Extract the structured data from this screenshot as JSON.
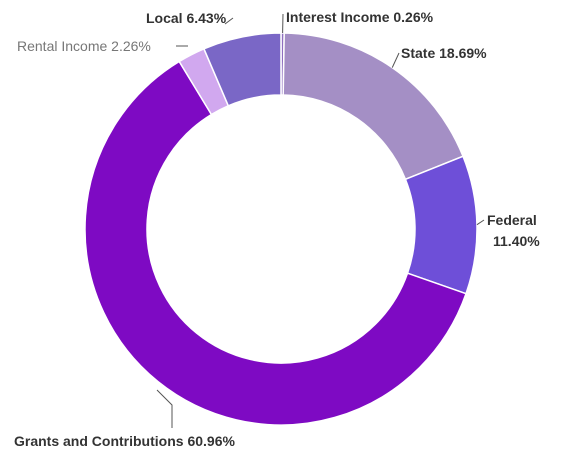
{
  "chart_data": {
    "type": "pie",
    "donut": true,
    "legend": "none",
    "slices": [
      {
        "label": "Interest Income",
        "value": 0.26,
        "display": "Interest Income 0.26%",
        "color": "#8f6fbf"
      },
      {
        "label": "State",
        "value": 18.69,
        "display": "State 18.69%",
        "color": "#a48fc5"
      },
      {
        "label": "Federal",
        "value": 11.4,
        "display_lines": [
          "Federal",
          "11.40%"
        ],
        "color": "#6e4fd8"
      },
      {
        "label": "Grants and Contributions",
        "value": 60.96,
        "display": "Grants and Contributions 60.96%",
        "color": "#7e0ac3"
      },
      {
        "label": "Rental Income",
        "value": 2.26,
        "display": "Rental Income 2.26%",
        "color": "#d1a8ef"
      },
      {
        "label": "Local",
        "value": 6.43,
        "display": "Local 6.43%",
        "color": "#7a67c6"
      }
    ]
  }
}
